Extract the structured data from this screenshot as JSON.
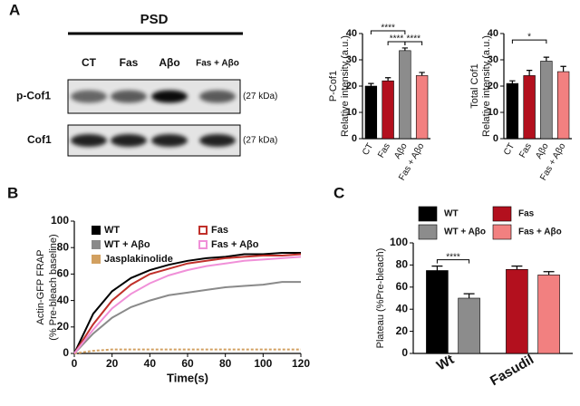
{
  "panel_labels": [
    "A",
    "B",
    "C"
  ],
  "blot": {
    "header": "PSD",
    "lanes": [
      "CT",
      "Fas",
      "Aβo",
      "Fas + Aβo"
    ],
    "rows": [
      {
        "label": "p-Cof1",
        "size": "(27 kDa)"
      },
      {
        "label": "Cof1",
        "size": "(27 kDa)"
      }
    ]
  },
  "chart_data": [
    {
      "type": "bar",
      "y_label": [
        "P-Cof1",
        "Relative intensity (a.u.)"
      ],
      "categories": [
        "CT",
        "Fas",
        "Aβo",
        "Fas + Aβo"
      ],
      "values": [
        20,
        22,
        33.5,
        24
      ],
      "errors": [
        1,
        1.2,
        1,
        1.2
      ],
      "colors": [
        "#000000",
        "#b3101e",
        "#8c8c8c",
        "#f28080"
      ],
      "ylim": [
        0,
        40
      ],
      "yticks": [
        0,
        10,
        20,
        30,
        40
      ],
      "annotations": [
        {
          "text": "****",
          "between": [
            "CT",
            "Aβo"
          ]
        },
        {
          "text": "****",
          "between": [
            "Fas",
            "Aβo"
          ]
        },
        {
          "text": "****",
          "between": [
            "Aβo",
            "Fas + Aβo"
          ]
        }
      ]
    },
    {
      "type": "bar",
      "y_label": [
        "Total Cof1",
        "Relative intensity (a.u.)"
      ],
      "categories": [
        "CT",
        "Fas",
        "Aβo",
        "Fas + Aβo"
      ],
      "values": [
        21,
        24,
        29.5,
        25.5
      ],
      "errors": [
        1,
        2,
        1.5,
        2
      ],
      "colors": [
        "#000000",
        "#b3101e",
        "#8c8c8c",
        "#f28080"
      ],
      "ylim": [
        0,
        40
      ],
      "yticks": [
        0,
        10,
        20,
        30,
        40
      ],
      "annotations": [
        {
          "text": "*",
          "between": [
            "CT",
            "Aβo"
          ]
        }
      ]
    },
    {
      "type": "line",
      "y_label": [
        "Actin-GFP FRAP",
        "(% Pre-bleach baseline)"
      ],
      "x_label": "Time(s)",
      "x": [
        0,
        10,
        20,
        30,
        40,
        50,
        60,
        70,
        80,
        90,
        100,
        110,
        120
      ],
      "series": [
        {
          "name": "WT",
          "color": "#000000",
          "values": [
            0,
            30,
            47,
            57,
            63,
            67,
            70,
            72,
            73,
            75,
            75,
            76,
            76
          ]
        },
        {
          "name": "WT + Aβo",
          "color": "#8a8a8a",
          "values": [
            0,
            15,
            27,
            35,
            40,
            44,
            46,
            48,
            50,
            51,
            52,
            54,
            54
          ]
        },
        {
          "name": "Jasplakinolide",
          "color": "#d2a060",
          "values": [
            0,
            2,
            3,
            3,
            3,
            3,
            3,
            3,
            3,
            3,
            3,
            3,
            3
          ]
        },
        {
          "name": "Fas",
          "color": "#c0302a",
          "values": [
            0,
            22,
            40,
            52,
            60,
            64,
            68,
            70,
            72,
            73,
            74,
            74,
            75
          ]
        },
        {
          "name": "Fas + Aβo",
          "color": "#f090d8",
          "values": [
            0,
            18,
            34,
            45,
            53,
            59,
            63,
            66,
            68,
            70,
            71,
            72,
            73
          ]
        }
      ],
      "xlim": [
        0,
        120
      ],
      "xticks": [
        0,
        20,
        40,
        60,
        80,
        100,
        120
      ],
      "ylim": [
        0,
        100
      ],
      "yticks": [
        0,
        20,
        40,
        60,
        80,
        100
      ],
      "legend": "upper left"
    },
    {
      "type": "bar",
      "y_label": [
        "Plateau (%Pre-bleach)"
      ],
      "categories": [
        "Wt",
        "Fasudil"
      ],
      "series": [
        {
          "name": "WT",
          "color": "#000000",
          "values": [
            75,
            null
          ],
          "errors": [
            4,
            null
          ]
        },
        {
          "name": "WT + Aβo",
          "color": "#8c8c8c",
          "values": [
            50,
            null
          ],
          "errors": [
            4,
            null
          ]
        },
        {
          "name": "Fas",
          "color": "#b3101e",
          "values": [
            null,
            76
          ],
          "errors": [
            null,
            3
          ]
        },
        {
          "name": "Fas + Aβo",
          "color": "#f28080",
          "values": [
            null,
            71
          ],
          "errors": [
            null,
            3
          ]
        }
      ],
      "ylim": [
        0,
        100
      ],
      "yticks": [
        0,
        20,
        40,
        60,
        80,
        100
      ],
      "annotations": [
        {
          "text": "****",
          "between": [
            "WT",
            "WT + Aβo"
          ]
        }
      ],
      "legend": "top"
    }
  ]
}
